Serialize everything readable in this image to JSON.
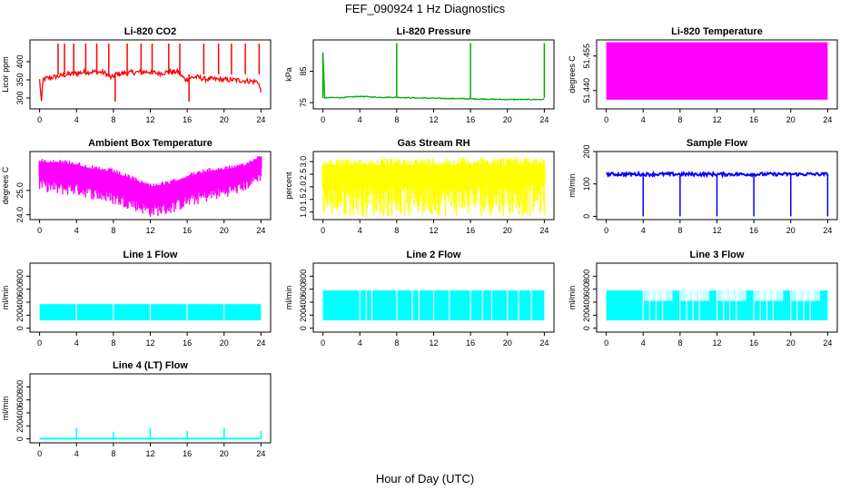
{
  "figure": {
    "title": "FEF_090924  1 Hz Diagnostics",
    "xlabel": "Hour of Day (UTC)"
  },
  "chart_data": [
    {
      "id": "co2",
      "type": "line",
      "title": "Li-820 CO2",
      "ylabel": "Licor ppm",
      "xlim": [
        0,
        24
      ],
      "ylim": [
        270,
        460
      ],
      "yticks": [
        300,
        350,
        400
      ],
      "xticks": [
        0,
        4,
        8,
        12,
        16,
        20,
        24
      ],
      "series": [
        {
          "color": "#ff0000",
          "x": [
            0,
            0.2,
            0.4,
            1,
            2,
            3,
            4,
            5,
            6,
            7,
            7.8,
            8.2,
            9,
            10,
            11,
            12,
            13,
            14,
            15,
            15.8,
            16.2,
            17,
            18,
            19,
            20,
            21,
            22,
            23,
            23.7,
            24
          ],
          "y": [
            350,
            290,
            352,
            355,
            360,
            365,
            368,
            372,
            372,
            370,
            355,
            365,
            368,
            370,
            372,
            372,
            368,
            372,
            372,
            350,
            355,
            358,
            352,
            352,
            350,
            350,
            348,
            346,
            345,
            315
          ],
          "spikes": [
            {
              "x": 2,
              "y": 450
            },
            {
              "x": 2.7,
              "y": 450
            },
            {
              "x": 3.7,
              "y": 450
            },
            {
              "x": 5,
              "y": 450
            },
            {
              "x": 6.2,
              "y": 450
            },
            {
              "x": 7.5,
              "y": 450
            },
            {
              "x": 8.2,
              "y": 290
            },
            {
              "x": 9.5,
              "y": 450
            },
            {
              "x": 11,
              "y": 450
            },
            {
              "x": 12.2,
              "y": 450
            },
            {
              "x": 14,
              "y": 450
            },
            {
              "x": 15.2,
              "y": 450
            },
            {
              "x": 16.2,
              "y": 290
            },
            {
              "x": 17.8,
              "y": 450
            },
            {
              "x": 19.4,
              "y": 450
            },
            {
              "x": 20.8,
              "y": 450
            },
            {
              "x": 22.3,
              "y": 450
            },
            {
              "x": 23.8,
              "y": 450
            }
          ]
        }
      ]
    },
    {
      "id": "pressure",
      "type": "line",
      "title": "Li-820 Pressure",
      "ylabel": "kPa",
      "xlim": [
        0,
        24
      ],
      "ylim": [
        73,
        95
      ],
      "yticks": [
        75,
        85
      ],
      "xticks": [
        0,
        4,
        8,
        12,
        16,
        20,
        24
      ],
      "series": [
        {
          "color": "#00aa00",
          "x": [
            0,
            0.2,
            0.4,
            2,
            4,
            6,
            8,
            10,
            12,
            14,
            16,
            18,
            20,
            22,
            24
          ],
          "y": [
            91,
            76.3,
            76.6,
            76.6,
            77,
            76.7,
            76.7,
            76.5,
            76.4,
            76.3,
            76.2,
            76.1,
            76.0,
            76.0,
            76.0
          ],
          "spikes": [
            {
              "x": 0,
              "y": 91
            },
            {
              "x": 8,
              "y": 94
            },
            {
              "x": 16,
              "y": 94
            },
            {
              "x": 24,
              "y": 94
            }
          ]
        }
      ]
    },
    {
      "id": "licor_temp",
      "type": "area",
      "title": "Li-820 Temperature",
      "ylabel": "degrees C",
      "xlim": [
        0,
        24
      ],
      "ylim": [
        51.432,
        51.462
      ],
      "yticks": [
        51.44,
        51.455
      ],
      "ytick_labels": [
        "51.440",
        "51.455"
      ],
      "xticks": [
        0,
        4,
        8,
        12,
        16,
        20,
        24
      ],
      "series": [
        {
          "color": "#ff00ff",
          "x": [
            0,
            24
          ],
          "ymin": 51.436,
          "ymax": 51.461
        }
      ]
    },
    {
      "id": "box_temp",
      "type": "area",
      "title": "Ambient Box Temperature",
      "ylabel": "degrees C",
      "xlim": [
        0,
        24
      ],
      "ylim": [
        23.8,
        26.6
      ],
      "yticks": [
        24.0,
        25.0
      ],
      "ytick_labels": [
        "24.0",
        "25.0"
      ],
      "xticks": [
        0,
        4,
        8,
        12,
        16,
        20,
        24
      ],
      "series": [
        {
          "color": "#ff00ff",
          "x": [
            0,
            2,
            4,
            6,
            8,
            10,
            12,
            14,
            16,
            18,
            20,
            22,
            24
          ],
          "upper": [
            26.3,
            26.3,
            26.2,
            26.0,
            25.9,
            25.6,
            25.3,
            25.4,
            25.7,
            25.9,
            26.0,
            26.1,
            26.5
          ],
          "lower": [
            25.0,
            24.8,
            24.8,
            24.6,
            24.4,
            24.2,
            23.9,
            24.0,
            24.3,
            24.5,
            24.7,
            24.9,
            25.4
          ]
        }
      ]
    },
    {
      "id": "rh",
      "type": "area",
      "title": "Gas Stream RH",
      "ylabel": "percent",
      "xlim": [
        0,
        24
      ],
      "ylim": [
        0.7,
        3.4
      ],
      "yticks": [
        1.0,
        1.5,
        2.0,
        2.5,
        3.0
      ],
      "ytick_labels": [
        "1.0",
        "1.5",
        "2.0",
        "2.5",
        "3.0"
      ],
      "xticks": [
        0,
        4,
        8,
        12,
        16,
        20,
        24
      ],
      "series": [
        {
          "color": "#ffff00",
          "x": [
            0,
            24
          ],
          "upper": [
            3.1,
            3.2
          ],
          "lower": [
            0.8,
            0.85
          ]
        }
      ]
    },
    {
      "id": "sample_flow",
      "type": "line",
      "title": "Sample Flow",
      "ylabel": "ml/min",
      "xlim": [
        0,
        24
      ],
      "ylim": [
        -10,
        200
      ],
      "yticks": [
        0,
        100,
        200
      ],
      "xticks": [
        0,
        4,
        8,
        12,
        16,
        20,
        24
      ],
      "series": [
        {
          "color": "#0000ff",
          "level": 130,
          "dips": [
            4,
            8,
            12,
            16,
            20,
            24
          ],
          "dip_value": 0
        }
      ]
    },
    {
      "id": "line1",
      "type": "area",
      "title": "Line 1 Flow",
      "ylabel": "ml/min",
      "xlim": [
        0,
        24
      ],
      "ylim": [
        -60,
        1000
      ],
      "yticks": [
        0,
        200,
        400,
        600,
        800
      ],
      "xticks": [
        0,
        4,
        8,
        12,
        16,
        20,
        24
      ],
      "series": [
        {
          "color": "#00ffff",
          "x": [
            0,
            24
          ],
          "upper": [
            370,
            370
          ],
          "lower": [
            120,
            120
          ],
          "gaps": [
            4,
            8,
            12,
            16,
            20
          ]
        }
      ]
    },
    {
      "id": "line2",
      "type": "area",
      "title": "Line 2 Flow",
      "ylabel": "ml/min",
      "xlim": [
        0,
        24
      ],
      "ylim": [
        -60,
        1000
      ],
      "yticks": [
        0,
        200,
        400,
        600,
        800
      ],
      "xticks": [
        0,
        4,
        8,
        12,
        16,
        20,
        24
      ],
      "series": [
        {
          "color": "#00ffff",
          "x": [
            0,
            24
          ],
          "upper": [
            580,
            580
          ],
          "lower": [
            120,
            120
          ],
          "gaps": [
            4,
            4.7,
            5.3,
            8,
            9.7,
            10.4,
            12,
            13.7,
            16,
            17.3,
            18.3,
            20,
            21.2,
            22.6
          ]
        }
      ]
    },
    {
      "id": "line3",
      "type": "area",
      "title": "Line 3 Flow",
      "ylabel": "ml/min",
      "xlim": [
        0,
        24
      ],
      "ylim": [
        -60,
        1000
      ],
      "yticks": [
        0,
        200,
        400,
        600,
        800
      ],
      "xticks": [
        0,
        4,
        8,
        12,
        16,
        20,
        24
      ],
      "series": [
        {
          "color": "#00ffff",
          "x": [
            0,
            24
          ],
          "upper": [
            580,
            580
          ],
          "lower": [
            120,
            120
          ],
          "mid": 420,
          "gaps": [
            4,
            4.7,
            5.4,
            6.1,
            8,
            8.7,
            9.4,
            10.1,
            12,
            12.7,
            13.4,
            14.1,
            16,
            16.7,
            17.4,
            18.1,
            20,
            20.7,
            21.4,
            22.1
          ]
        }
      ]
    },
    {
      "id": "line4",
      "type": "line",
      "title": "Line 4 (LT) Flow",
      "ylabel": "ml/min",
      "xlim": [
        0,
        24
      ],
      "ylim": [
        -60,
        1000
      ],
      "yticks": [
        0,
        200,
        400,
        600,
        800
      ],
      "xticks": [
        0,
        4,
        8,
        12,
        16,
        20,
        24
      ],
      "series": [
        {
          "color": "#00ffff",
          "level": 5,
          "spikes": [
            {
              "x": 4,
              "y": 170
            },
            {
              "x": 8,
              "y": 110
            },
            {
              "x": 12,
              "y": 170
            },
            {
              "x": 16,
              "y": 120
            },
            {
              "x": 20,
              "y": 170
            },
            {
              "x": 24,
              "y": 120
            }
          ]
        }
      ]
    }
  ]
}
